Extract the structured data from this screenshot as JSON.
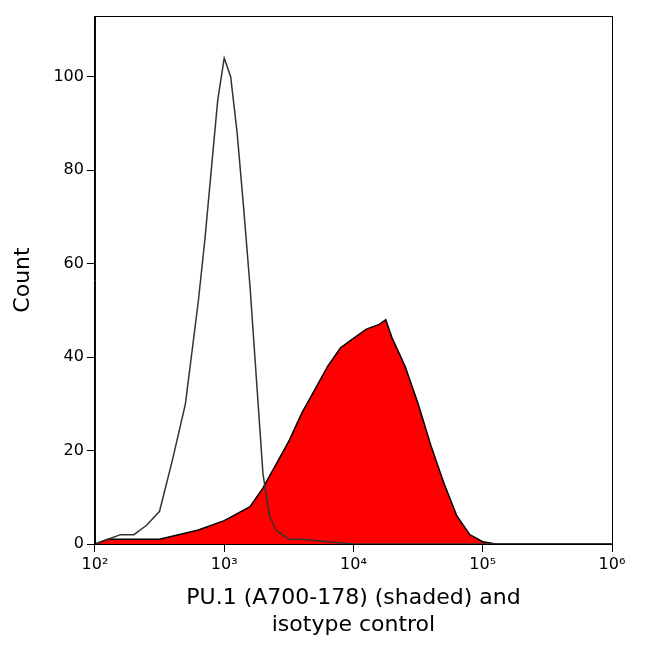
{
  "chart_data": {
    "type": "line",
    "xlabel": [
      "PU.1 (A700-178) (shaded) and",
      "isotype control"
    ],
    "ylabel": "Count",
    "log": "x",
    "grid": false,
    "xlim": [
      100,
      1000000
    ],
    "xticks": [
      {
        "value": 100,
        "label": "10²"
      },
      {
        "value": 1000,
        "label": "10³"
      },
      {
        "value": 10000,
        "label": "10⁴"
      },
      {
        "value": 100000,
        "label": "10⁵"
      },
      {
        "value": 1000000,
        "label": "10⁶"
      }
    ],
    "ylim": [
      0,
      113
    ],
    "yticks": [
      0,
      20,
      40,
      60,
      80,
      100
    ],
    "series": [
      {
        "type": "line",
        "color": "#333333",
        "x": [
          100,
          126,
          158,
          200,
          251,
          316,
          398,
          501,
          631,
          708,
          794,
          891,
          1000,
          1122,
          1259,
          1413,
          1585,
          1778,
          1995,
          2239,
          2512,
          3162,
          3981,
          6310,
          10000,
          100000,
          1000000
        ],
        "values": [
          0,
          1,
          2,
          2,
          4,
          7,
          18,
          30,
          52,
          65,
          80,
          95,
          104,
          100,
          88,
          72,
          55,
          35,
          15,
          6,
          3,
          1,
          1,
          0.5,
          0,
          0,
          0
        ]
      },
      {
        "type": "area",
        "color": "#ff0000",
        "x": [
          100,
          126,
          316,
          631,
          1000,
          1585,
          1995,
          2512,
          3162,
          3981,
          5012,
          6310,
          7943,
          10000,
          12589,
          15849,
          17783,
          19953,
          25119,
          31623,
          39811,
          50119,
          63096,
          79433,
          100000,
          125893,
          1000000
        ],
        "values": [
          0,
          1,
          1,
          3,
          5,
          8,
          12,
          17,
          22,
          28,
          33,
          38,
          42,
          44,
          46,
          47,
          48,
          44,
          38,
          30,
          21,
          13,
          6,
          2,
          0.5,
          0,
          0
        ]
      }
    ]
  }
}
